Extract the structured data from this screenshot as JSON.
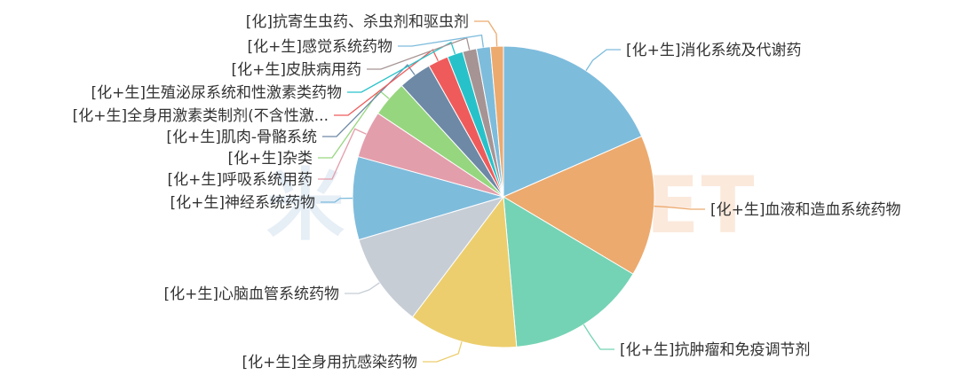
{
  "watermark": "MENET",
  "chart_data": {
    "type": "pie",
    "title": "",
    "slices": [
      {
        "label": "[化+生]消化系统及代谢药",
        "value": 18.6,
        "color": "#7ebcdc"
      },
      {
        "label": "[化+生]血液和造血系统药物",
        "value": 15.3,
        "color": "#ecaa6e"
      },
      {
        "label": "[化+生]抗肿瘤和免疫调节剂",
        "value": 15.2,
        "color": "#74d3b4"
      },
      {
        "label": "[化+生]全身用抗感染药物",
        "value": 11.8,
        "color": "#ecce6e"
      },
      {
        "label": "[化+生]心脑血管系统药物",
        "value": 10.2,
        "color": "#c6cdd5"
      },
      {
        "label": "[化+生]神经系统药物",
        "value": 9.0,
        "color": "#7ebcdc"
      },
      {
        "label": "[化+生]呼吸系统用药",
        "value": 5.1,
        "color": "#e39eab"
      },
      {
        "label": "[化+生]杂类",
        "value": 3.9,
        "color": "#96d67f"
      },
      {
        "label": "[化+生]肌肉-骨骼系统",
        "value": 3.6,
        "color": "#6d89a6"
      },
      {
        "label": "[化+生]全身用激素类制剂(不含性激...",
        "value": 2.2,
        "color": "#ef5b5b"
      },
      {
        "label": "[化+生]生殖泌尿系统和性激素类药物",
        "value": 1.7,
        "color": "#27c2c9"
      },
      {
        "label": "[化+生]皮肤病用药",
        "value": 1.5,
        "color": "#a69494"
      },
      {
        "label": "[化+生]感觉系统药物",
        "value": 1.5,
        "color": "#7ebcdc"
      },
      {
        "label": "[化]抗寄生虫药、杀虫剂和驱虫剂",
        "value": 1.4,
        "color": "#ecaa6e"
      }
    ]
  }
}
